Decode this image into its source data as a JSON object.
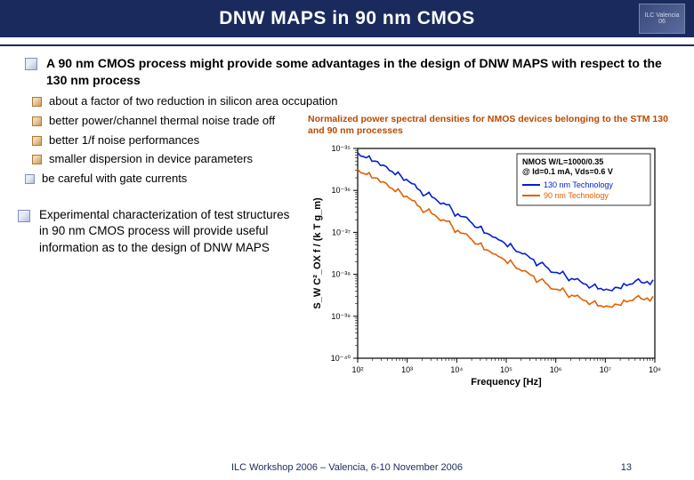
{
  "header": {
    "title": "DNW MAPS in 90 nm CMOS",
    "logo_line1": "ILC Valencia",
    "logo_line2": "06",
    "bar_color": "#1a2a5c"
  },
  "bullets": {
    "main1": "A 90 nm CMOS process might provide some advantages in the design of DNW MAPS with respect to the 130 nm process",
    "sub1": "about a factor of two reduction in silicon area occupation",
    "sub2": "better power/channel thermal noise trade off",
    "sub3": "better 1/f noise performances",
    "sub4": "smaller dispersion in device parameters",
    "sub5": "be careful with gate currents",
    "main2": "Experimental characterization of test structures in 90 nm CMOS process will provide useful information as to the design of DNW MAPS"
  },
  "chart": {
    "caption": "Normalized power spectral densities for NMOS devices belonging to the STM 130 and 90 nm processes",
    "type": "line",
    "xlabel": "Frequency [Hz]",
    "ylabel": "S_W C²_OX f / (k T g_m)",
    "xscale": "log",
    "yscale": "log",
    "xlim": [
      100,
      100000000
    ],
    "ylim": [
      1e-40,
      1e-35
    ],
    "xticks": [
      100,
      1000,
      10000,
      100000,
      1000000,
      10000000,
      100000000
    ],
    "xtick_labels": [
      "10²",
      "10³",
      "10⁴",
      "10⁵",
      "10⁶",
      "10⁷",
      "10⁸"
    ],
    "yticks": [
      1e-40,
      1e-39,
      1e-38,
      1e-37,
      1e-36,
      1e-35
    ],
    "ytick_labels": [
      "10⁻⁴⁰",
      "10⁻³⁹",
      "10⁻³⁸",
      "10⁻³⁷",
      "10⁻³⁶",
      "10⁻³⁵"
    ],
    "legend": {
      "title": "NMOS W/L=1000/0.35\n@ Id=0.1 mA, Vds=0.6 V",
      "title_color": "#000000",
      "items": [
        {
          "label": "130 nm Technology",
          "color": "#0020d0"
        },
        {
          "label": "90 nm Technology",
          "color": "#e06000"
        }
      ],
      "position": "top-right"
    },
    "series": [
      {
        "name": "130nm",
        "color": "#0020d0",
        "line_width": 1.6,
        "x": [
          100,
          150,
          220,
          330,
          500,
          750,
          1100,
          1600,
          2400,
          3600,
          5400,
          8100,
          12000,
          18000,
          27000,
          41000,
          61000,
          92000,
          140000,
          210000,
          310000,
          470000,
          700000,
          1050000,
          1600000,
          2400000,
          3600000,
          5400000,
          8100000,
          12000000,
          18000000,
          27000000,
          41000000,
          61000000,
          92000000
        ],
        "y": [
          8e-36,
          6e-36,
          5e-36,
          4e-36,
          2.8e-36,
          2.2e-36,
          1.6e-36,
          1.1e-36,
          8e-37,
          6.5e-37,
          5e-37,
          3.4e-37,
          2.4e-37,
          1.9e-37,
          1.3e-37,
          9.5e-38,
          7.5e-38,
          5.6e-38,
          4.2e-38,
          3.1e-38,
          2.4e-38,
          1.8e-38,
          1.4e-38,
          1.1e-38,
          9e-39,
          7.5e-39,
          6e-39,
          5.2e-39,
          4.6e-39,
          4.2e-39,
          4.8e-39,
          5.4e-39,
          7e-39,
          6.2e-39,
          7.4e-39
        ]
      },
      {
        "name": "90nm",
        "color": "#e06000",
        "line_width": 1.6,
        "x": [
          100,
          150,
          220,
          330,
          500,
          750,
          1100,
          1600,
          2400,
          3600,
          5400,
          8100,
          12000,
          18000,
          27000,
          41000,
          61000,
          92000,
          140000,
          210000,
          310000,
          470000,
          700000,
          1050000,
          1600000,
          2400000,
          3600000,
          5400000,
          8100000,
          12000000,
          18000000,
          27000000,
          41000000,
          61000000,
          92000000
        ],
        "y": [
          3.2e-36,
          2.4e-36,
          2e-36,
          1.6e-36,
          1.1e-36,
          8.8e-37,
          6.4e-37,
          4.4e-37,
          3.2e-37,
          2.6e-37,
          2e-37,
          1.4e-37,
          9.6e-38,
          7.6e-38,
          5.2e-38,
          3.8e-38,
          3e-38,
          2.2e-38,
          1.7e-38,
          1.2e-38,
          9.6e-39,
          7.2e-39,
          5.6e-39,
          4.4e-39,
          3.6e-39,
          3e-39,
          2.4e-39,
          2.1e-39,
          1.8e-39,
          1.7e-39,
          1.9e-39,
          2.2e-39,
          2.8e-39,
          2.5e-39,
          3e-39
        ]
      }
    ],
    "background_color": "#ffffff",
    "axis_color": "#000000",
    "tick_fontsize": 9,
    "label_fontsize": 11
  },
  "footer": {
    "text": "ILC Workshop 2006 – Valencia, 6-10 November 2006",
    "page": "13",
    "color": "#1a2a5c"
  }
}
